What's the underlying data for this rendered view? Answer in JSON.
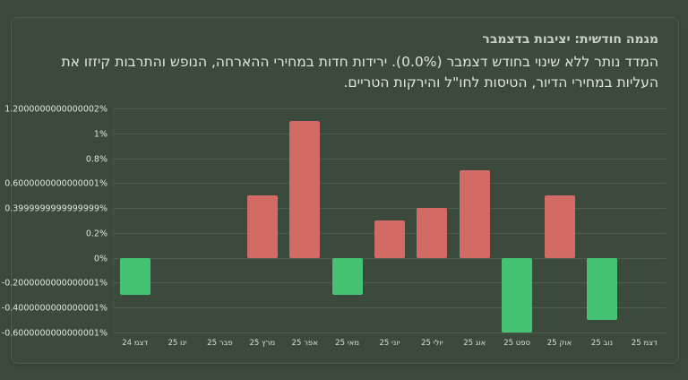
{
  "card": {
    "title": "מגמה חודשית: יציבות בדצמבר",
    "description": "המדד נותר ללא שינוי בחודש דצמבר (0.0%). ירידות חדות במחירי ההארחה, הנופש והתרבות קיזזו את העליות במחירי הדיור, הטיסות לחו\"ל והירקות הטריים."
  },
  "colors": {
    "background": "#3c4a3e",
    "positive_bar": "#d26a66",
    "negative_bar": "#46c372",
    "gridline": "#4f5d51",
    "text": "#e0e4e0"
  },
  "chart_data": {
    "type": "bar",
    "title": "מגמה חודשית: יציבות בדצמבר",
    "xlabel": "",
    "ylabel": "",
    "categories": [
      "דצמ 24",
      "ינו 25",
      "פבר 25",
      "מרץ 25",
      "אפר 25",
      "מאי 25",
      "יוני 25",
      "יולי 25",
      "אוג 25",
      "ספט 25",
      "אוק 25",
      "נוב 25",
      "דצמ 25"
    ],
    "values": [
      -0.3,
      0,
      0,
      0.5,
      1.1,
      -0.3,
      0.3,
      0.4,
      0.7,
      -0.6,
      0.5,
      -0.5,
      0
    ],
    "ylim": [
      -0.6,
      1.2
    ],
    "yticks": [
      1.2,
      1.0,
      0.8,
      0.6,
      0.4,
      0.2,
      0,
      -0.2,
      -0.4,
      -0.6
    ],
    "ytick_labels": [
      "1.2000000000000002%",
      "1%",
      "0.8%",
      "0.6000000000000001%",
      "0.3999999999999999%",
      "0.2%",
      "0%",
      "-0.2000000000000001%",
      "-0.4000000000000001%",
      "-0.6000000000000001%"
    ],
    "grid": true,
    "legend": null,
    "color_rule": "positive values red, negative values green"
  }
}
